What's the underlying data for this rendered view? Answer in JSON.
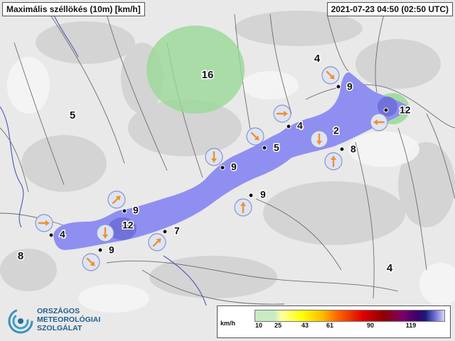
{
  "header": {
    "title": "Maximális széllökés (10m) [km/h]",
    "timestamp": "2021-07-23 04:50 (02:50 UTC)"
  },
  "map": {
    "background_color": "#e9e9e9",
    "lake_fill_color": "#8f8ff2",
    "high_gust_fill_color": "#98d896",
    "isoline_color": "#6d6d6d",
    "arrow_color": "#f2902a"
  },
  "region_labels": [
    {
      "id": "north-center",
      "value": "16"
    },
    {
      "id": "northwest",
      "value": "5"
    },
    {
      "id": "northeast",
      "value": "4"
    },
    {
      "id": "west",
      "value": "8"
    },
    {
      "id": "southeast",
      "value": "4"
    }
  ],
  "stations": [
    {
      "id": "s1",
      "value": "9",
      "arrow": "south-east"
    },
    {
      "id": "s2",
      "value": "12",
      "arrow": "west"
    },
    {
      "id": "s3",
      "value": "4",
      "arrow": "east"
    },
    {
      "id": "s4",
      "value": "2",
      "arrow": "south"
    },
    {
      "id": "s5",
      "value": "8",
      "arrow": "north"
    },
    {
      "id": "s6",
      "value": "5",
      "arrow": "south-east"
    },
    {
      "id": "s7",
      "value": "9",
      "arrow": "south"
    },
    {
      "id": "s8",
      "value": "9",
      "arrow": "north"
    },
    {
      "id": "s9",
      "value": "9",
      "arrow": "north-east"
    },
    {
      "id": "s10",
      "value": "12",
      "arrow": "south"
    },
    {
      "id": "s11",
      "value": "7",
      "arrow": "north-east"
    },
    {
      "id": "s12",
      "value": "4",
      "arrow": "east"
    },
    {
      "id": "s13",
      "value": "9",
      "arrow": "south-east"
    }
  ],
  "legend": {
    "unit": "km/h",
    "ticks": [
      "10",
      "25",
      "43",
      "61",
      "90",
      "119"
    ]
  },
  "logo": {
    "line1": "ORSZÁGOS",
    "line2": "METEOROLÓGIAI",
    "line3": "SZOLGÁLAT"
  }
}
